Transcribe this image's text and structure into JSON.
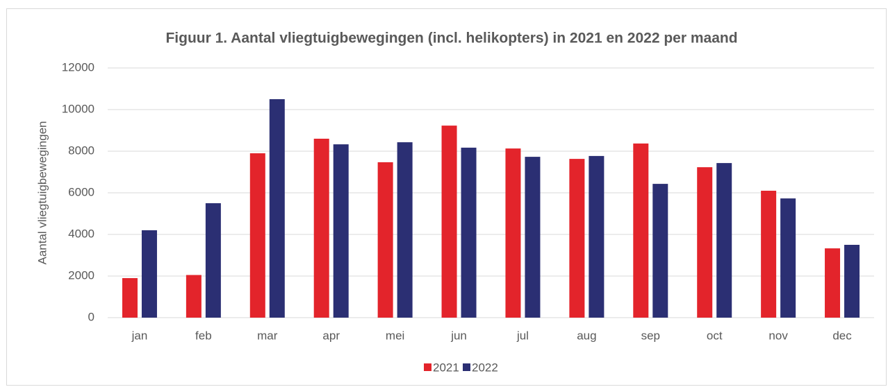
{
  "chart_data": {
    "type": "bar",
    "title": "Figuur 1. Aantal vliegtuigbewegingen (incl. helikopters) in 2021 en 2022 per maand",
    "y_label": "Aantal vliegtuigbewegingen",
    "categories": [
      "jan",
      "feb",
      "mar",
      "apr",
      "mei",
      "jun",
      "jul",
      "aug",
      "sep",
      "oct",
      "nov",
      "dec"
    ],
    "series": [
      {
        "name": "2021",
        "color": "#e3242b",
        "values": [
          1900,
          2050,
          7900,
          8600,
          7470,
          9230,
          8130,
          7630,
          8370,
          7230,
          6100,
          3330
        ]
      },
      {
        "name": "2022",
        "color": "#2b2f73",
        "values": [
          4200,
          5500,
          10500,
          8330,
          8430,
          8170,
          7730,
          7770,
          6430,
          7430,
          5730,
          3500
        ]
      }
    ],
    "ylim": [
      0,
      12000
    ],
    "yticks": [
      0,
      2000,
      4000,
      6000,
      8000,
      10000,
      12000
    ],
    "grid": true,
    "legend": "bottom"
  }
}
